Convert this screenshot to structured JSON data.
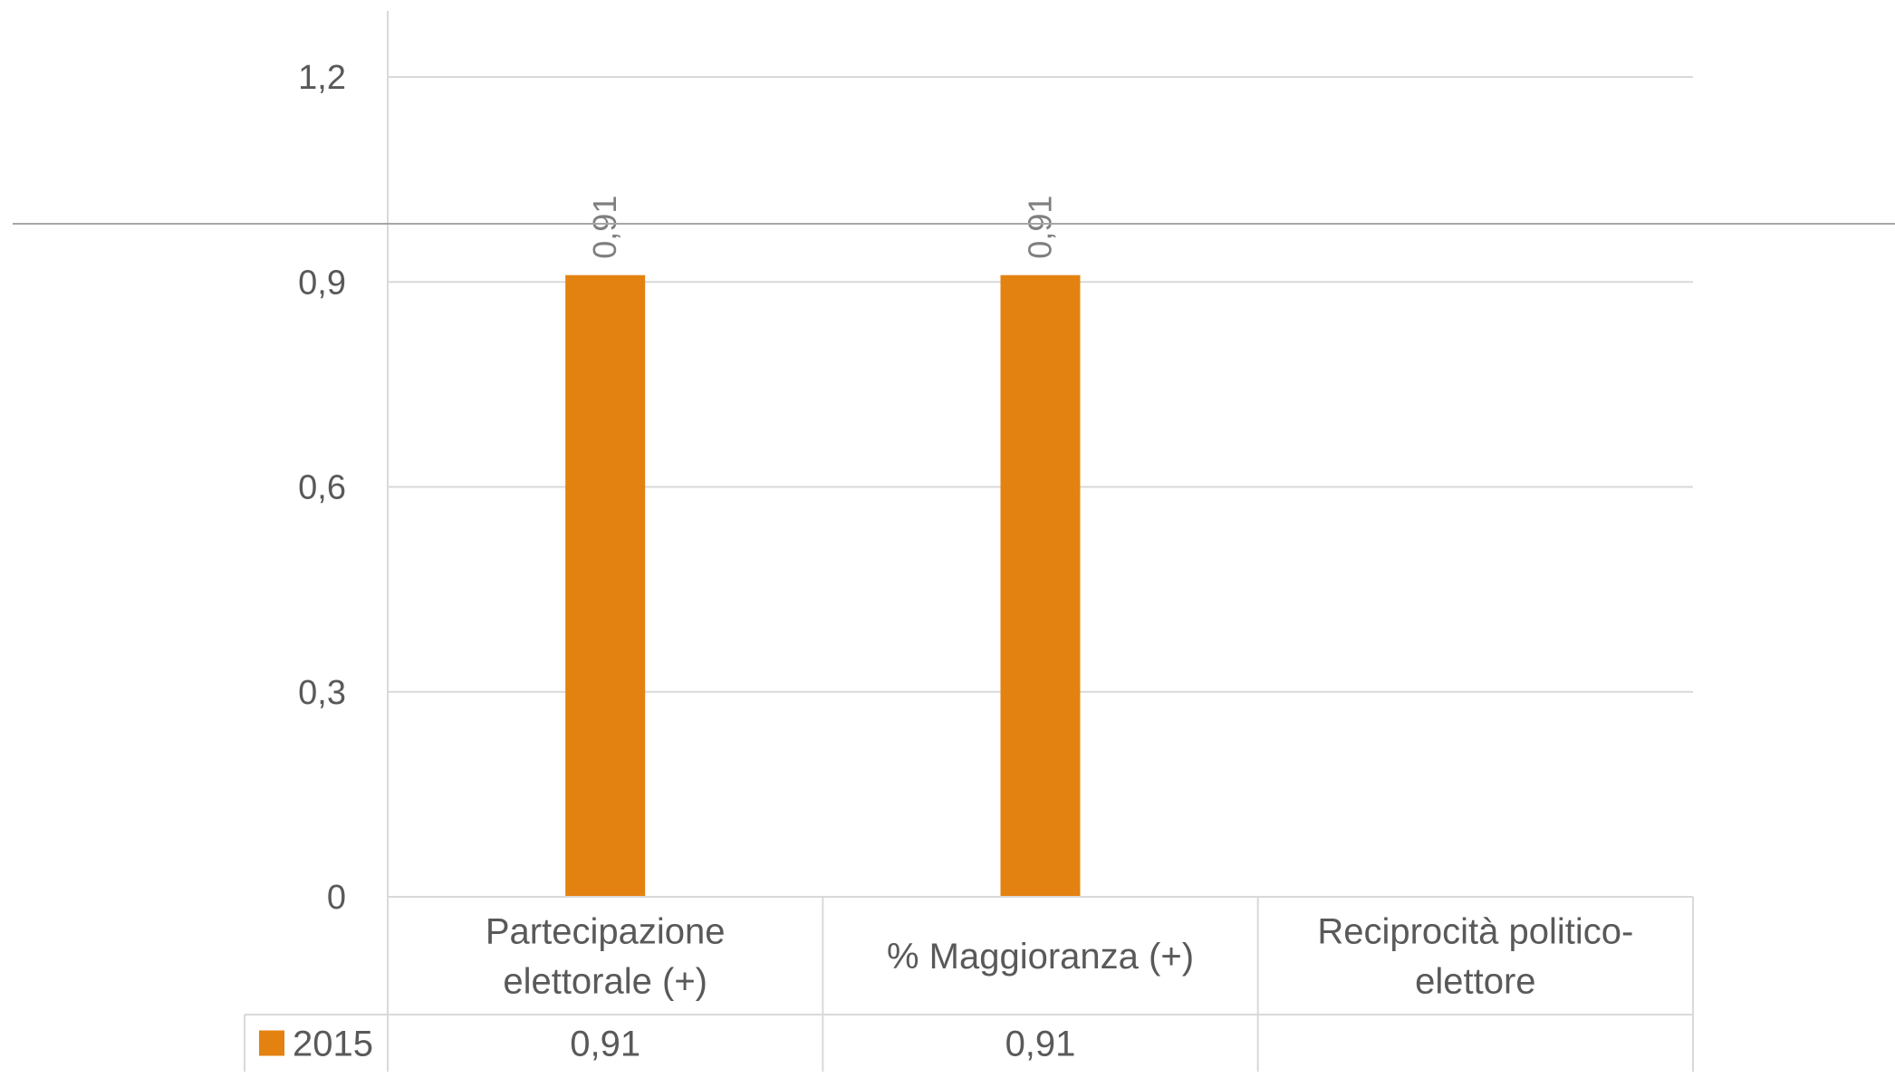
{
  "chart_data": {
    "type": "bar",
    "categories": [
      [
        "Partecipazione",
        "elettorale (+)"
      ],
      [
        "% Maggioranza (+)"
      ],
      [
        "Reciprocità politico-",
        "elettore"
      ]
    ],
    "series": [
      {
        "name": "2015",
        "values": [
          0.91,
          0.91,
          null
        ],
        "labels": [
          "0,91",
          "0,91",
          ""
        ],
        "color": "#E48211"
      }
    ],
    "y_ticks": [
      "0",
      "0,3",
      "0,6",
      "0,9",
      "1,2"
    ],
    "y_tick_values": [
      0,
      0.3,
      0.6,
      0.9,
      1.2
    ],
    "ylim": [
      0,
      1.2
    ],
    "grid": true,
    "legend": "data-table",
    "data_table": true,
    "title": "",
    "xlabel": "",
    "ylabel": ""
  },
  "colors": {
    "bar": "#E48211",
    "grid": "#D9D9D9",
    "text": "#595959",
    "data_label": "#7F7F7F",
    "overlay_line": "#A6A6A6"
  }
}
